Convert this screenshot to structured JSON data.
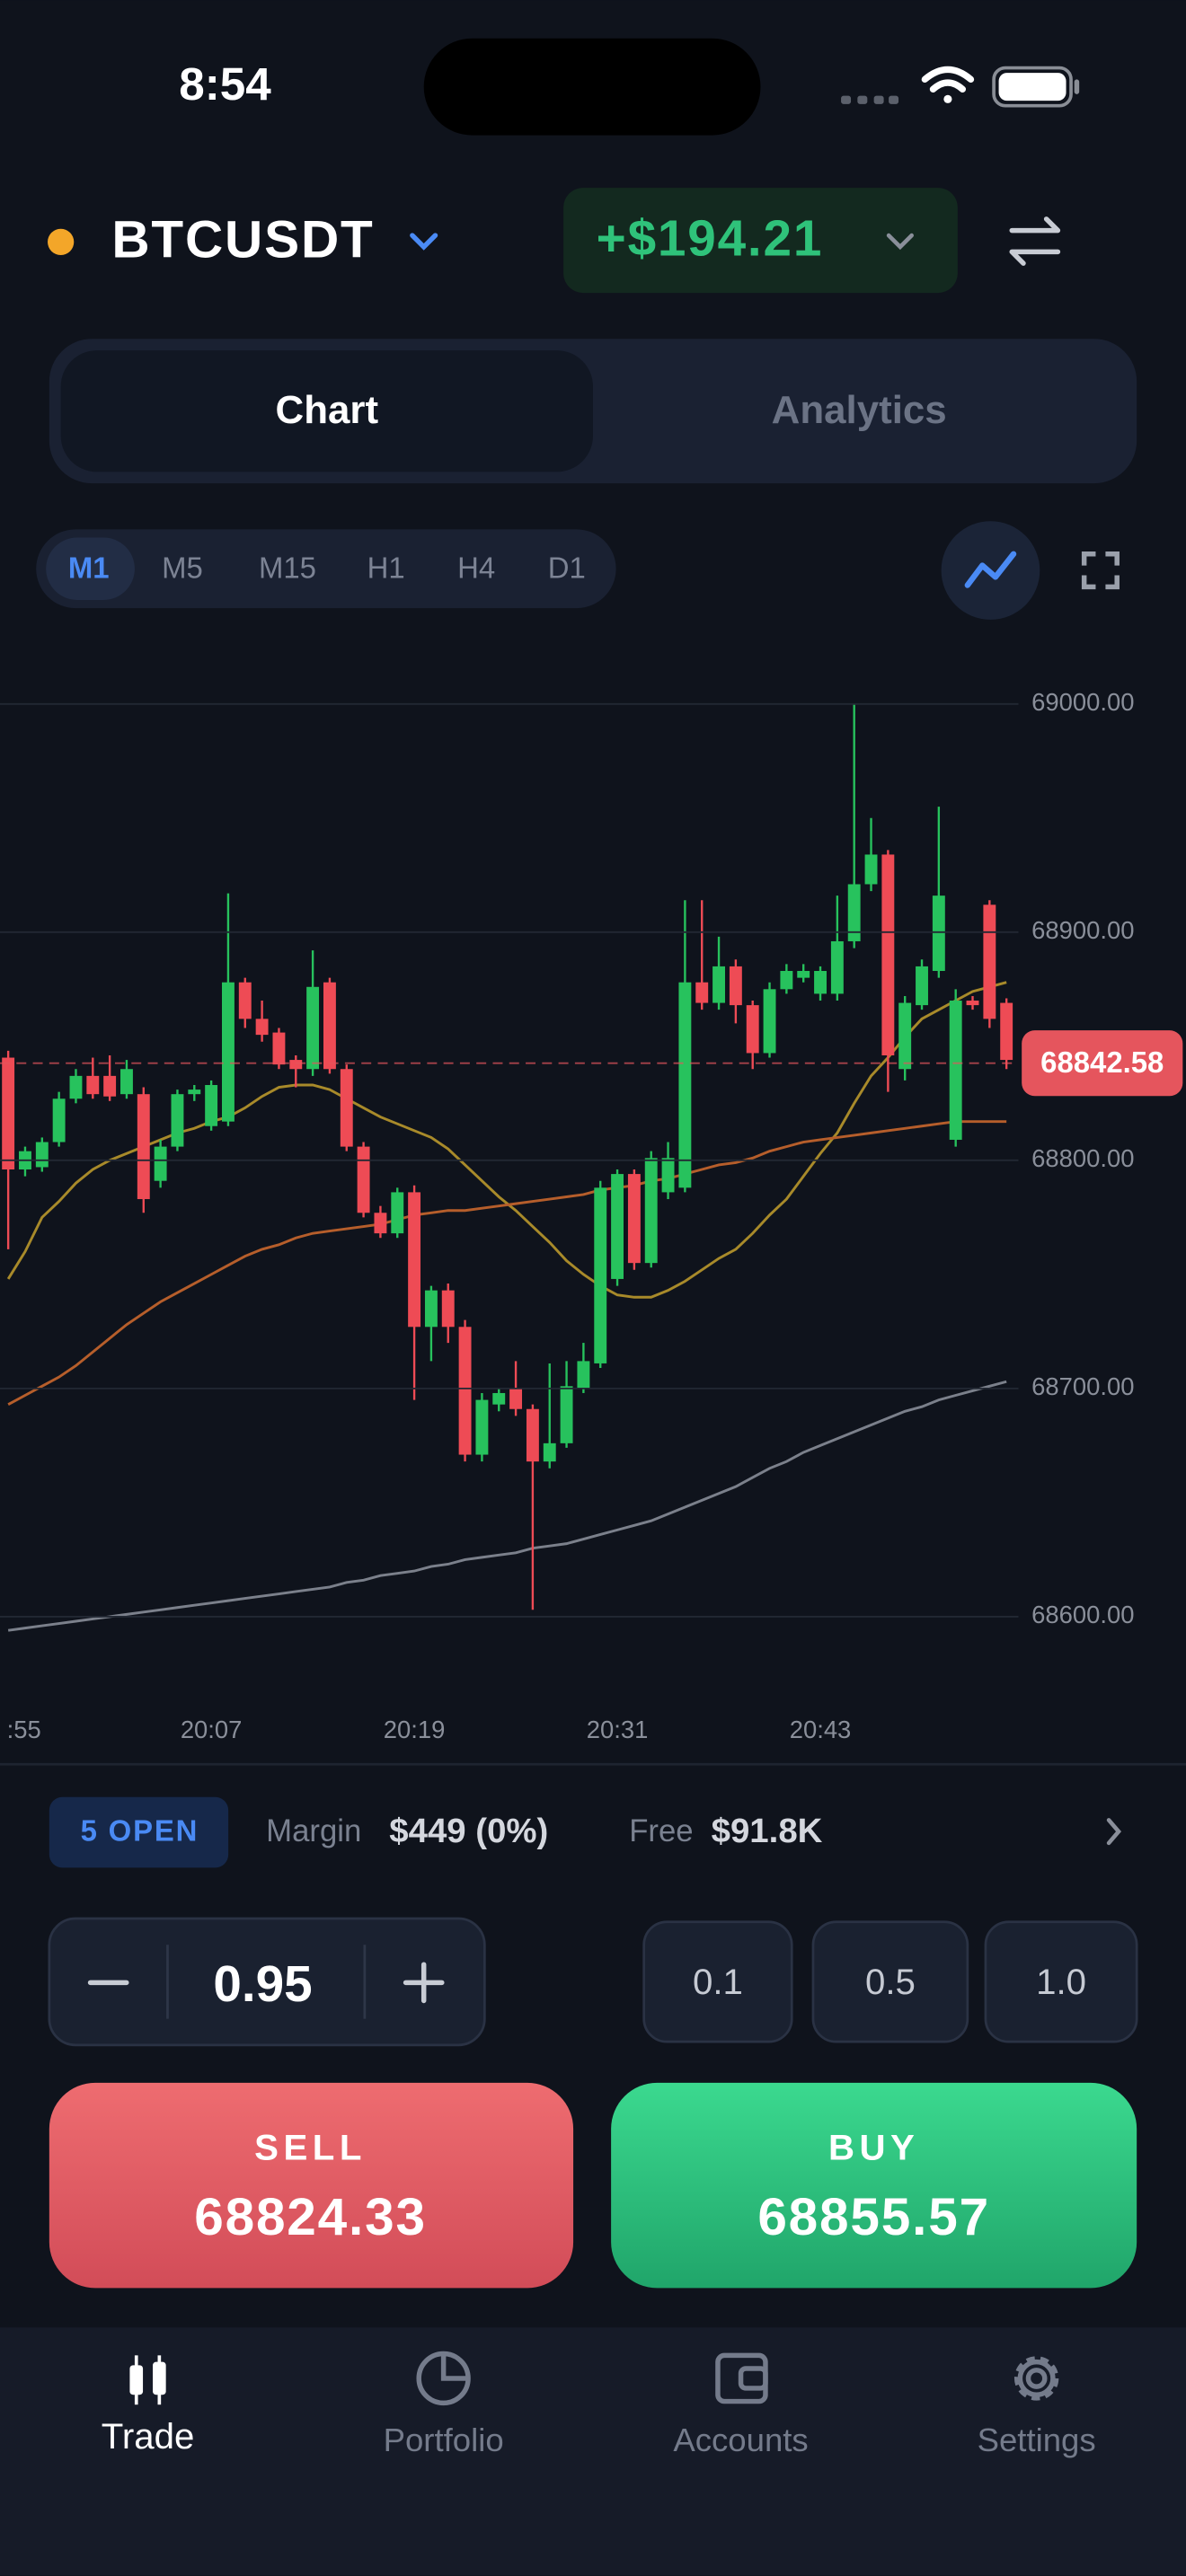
{
  "status_bar": {
    "time": "8:54"
  },
  "header": {
    "symbol": "BTCUSDT",
    "pnl": "+$194.21"
  },
  "tabs": [
    "Chart",
    "Analytics"
  ],
  "timeframes": [
    "M1",
    "M5",
    "M15",
    "H1",
    "H4",
    "D1"
  ],
  "chart_data": {
    "type": "candlestick",
    "categories": [
      ":55",
      null,
      null,
      null,
      null,
      null,
      null,
      null,
      null,
      null,
      null,
      null,
      "20:07",
      null,
      null,
      null,
      null,
      null,
      null,
      null,
      null,
      null,
      null,
      null,
      "20:19",
      null,
      null,
      null,
      null,
      null,
      null,
      null,
      null,
      null,
      null,
      null,
      "20:31",
      null,
      null,
      null,
      null,
      null,
      null,
      null,
      null,
      null,
      null,
      null,
      "20:43",
      null,
      null,
      null,
      null,
      null,
      null,
      null,
      null,
      null,
      null,
      null
    ],
    "open": [
      68845,
      68796,
      68797,
      68808,
      68827,
      68837,
      68837,
      68829,
      68829,
      68791,
      68806,
      68829,
      68815,
      68817,
      68878,
      68862,
      68856,
      68844,
      68840,
      68878,
      68840,
      68806,
      68777,
      68768,
      68786,
      68727,
      68743,
      68727,
      68671,
      68693,
      68700,
      68691,
      68668,
      68676,
      68700,
      68711,
      68748,
      68794,
      68755,
      68786,
      68788,
      68878,
      68869,
      68885,
      68868,
      68847,
      68875,
      68880,
      68873,
      68873,
      68896,
      68921,
      68934,
      68840,
      68868,
      68883,
      68809,
      68870,
      68912,
      68869
    ],
    "high": [
      68848,
      68806,
      68810,
      68830,
      68840,
      68845,
      68846,
      68844,
      68832,
      68809,
      68831,
      68833,
      68835,
      68917,
      68880,
      68870,
      68858,
      68846,
      68892,
      68880,
      68842,
      68808,
      68780,
      68788,
      68789,
      68745,
      68746,
      68730,
      68698,
      68700,
      68712,
      68693,
      68711,
      68712,
      68720,
      68791,
      68796,
      68796,
      68804,
      68808,
      68914,
      68914,
      68898,
      68888,
      68870,
      68878,
      68886,
      68886,
      68885,
      68916,
      69000,
      68950,
      68936,
      68872,
      68888,
      68955,
      68875,
      68872,
      68914,
      68871
    ],
    "low": [
      68761,
      68793,
      68795,
      68806,
      68825,
      68827,
      68826,
      68827,
      68777,
      68788,
      68804,
      68826,
      68813,
      68815,
      68858,
      68852,
      68840,
      68832,
      68837,
      68838,
      68804,
      68775,
      68766,
      68766,
      68695,
      68712,
      68720,
      68668,
      68668,
      68690,
      68688,
      68603,
      68665,
      68674,
      68698,
      68709,
      68745,
      68752,
      68753,
      68783,
      68786,
      68866,
      68866,
      68860,
      68840,
      68845,
      68873,
      68878,
      68870,
      68870,
      68893,
      68918,
      68830,
      68835,
      68866,
      68880,
      68806,
      68866,
      68858,
      68840
    ],
    "close": [
      68796,
      68804,
      68808,
      68827,
      68837,
      68829,
      68828,
      68840,
      68783,
      68806,
      68829,
      68831,
      68833,
      68878,
      68862,
      68855,
      68842,
      68840,
      68876,
      68840,
      68806,
      68777,
      68768,
      68786,
      68727,
      68743,
      68727,
      68671,
      68695,
      68698,
      68691,
      68668,
      68676,
      68701,
      68712,
      68788,
      68794,
      68755,
      68801,
      68801,
      68878,
      68869,
      68885,
      68868,
      68847,
      68875,
      68883,
      68883,
      68883,
      68896,
      68921,
      68934,
      68846,
      68869,
      68885,
      68916,
      68870,
      68868,
      68862,
      68844
    ],
    "up_color": "#27c25d",
    "down_color": "#ee4b55",
    "lines": [
      {
        "color": "#a88a2a",
        "values": [
          68748,
          68760,
          68775,
          68782,
          68790,
          68796,
          68800,
          68803,
          68806,
          68809,
          68812,
          68814,
          68817,
          68819,
          68823,
          68828,
          68832,
          68833,
          68833,
          68831,
          68827,
          68823,
          68819,
          68816,
          68813,
          68810,
          68805,
          68798,
          68791,
          68784,
          68778,
          68771,
          68764,
          68756,
          68750,
          68745,
          68741,
          68740,
          68740,
          68743,
          68747,
          68752,
          68757,
          68761,
          68768,
          68776,
          68783,
          68793,
          68803,
          68812,
          68825,
          68837,
          68845,
          68854,
          68862,
          68866,
          68870,
          68874,
          68876,
          68878
        ]
      },
      {
        "color": "#b65e2b",
        "values": [
          68693,
          68697,
          68701,
          68705,
          68710,
          68716,
          68722,
          68728,
          68733,
          68738,
          68742,
          68746,
          68750,
          68754,
          68758,
          68761,
          68763,
          68766,
          68768,
          68769,
          68770,
          68771,
          68772,
          68774,
          68776,
          68777,
          68778,
          68778,
          68779,
          68780,
          68781,
          68782,
          68783,
          68784,
          68785,
          68787,
          68788,
          68789,
          68791,
          68792,
          68794,
          68796,
          68798,
          68799,
          68801,
          68804,
          68806,
          68808,
          68809,
          68810,
          68811,
          68812,
          68813,
          68814,
          68815,
          68816,
          68817,
          68817,
          68817,
          68817
        ]
      },
      {
        "color": "#7b808b",
        "values": [
          68594,
          68595,
          68596,
          68597,
          68598,
          68599,
          68600,
          68601,
          68602,
          68603,
          68604,
          68605,
          68606,
          68607,
          68608,
          68609,
          68610,
          68611,
          68612,
          68613,
          68615,
          68616,
          68618,
          68619,
          68620,
          68622,
          68623,
          68625,
          68626,
          68627,
          68628,
          68630,
          68631,
          68632,
          68634,
          68636,
          68638,
          68640,
          68642,
          68645,
          68648,
          68651,
          68654,
          68657,
          68661,
          68665,
          68668,
          68672,
          68675,
          68678,
          68681,
          68684,
          68687,
          68690,
          68692,
          68695,
          68697,
          68699,
          68701,
          68703
        ]
      }
    ],
    "current_price": 68842.58,
    "current_price_color": "#e5555d",
    "ylim": [
      68567,
      69024
    ],
    "yticks": [
      {
        "value": 68600,
        "label": "68600.00"
      },
      {
        "value": 68700,
        "label": "68700.00"
      },
      {
        "value": 68800,
        "label": "68800.00"
      },
      {
        "value": 68900,
        "label": "68900.00"
      },
      {
        "value": 69000,
        "label": "69000.00"
      }
    ],
    "grid": true
  },
  "positions": {
    "open": "5 OPEN",
    "margin_label": "Margin",
    "margin": "$449 (0%)",
    "free_label": "Free",
    "free": "$91.8K"
  },
  "order": {
    "quantity": "0.95",
    "presets": [
      "0.1",
      "0.5",
      "1.0"
    ],
    "sell_label": "SELL",
    "sell_price": "68824.33",
    "buy_label": "BUY",
    "buy_price": "68855.57"
  },
  "nav": [
    "Trade",
    "Portfolio",
    "Accounts",
    "Settings"
  ]
}
